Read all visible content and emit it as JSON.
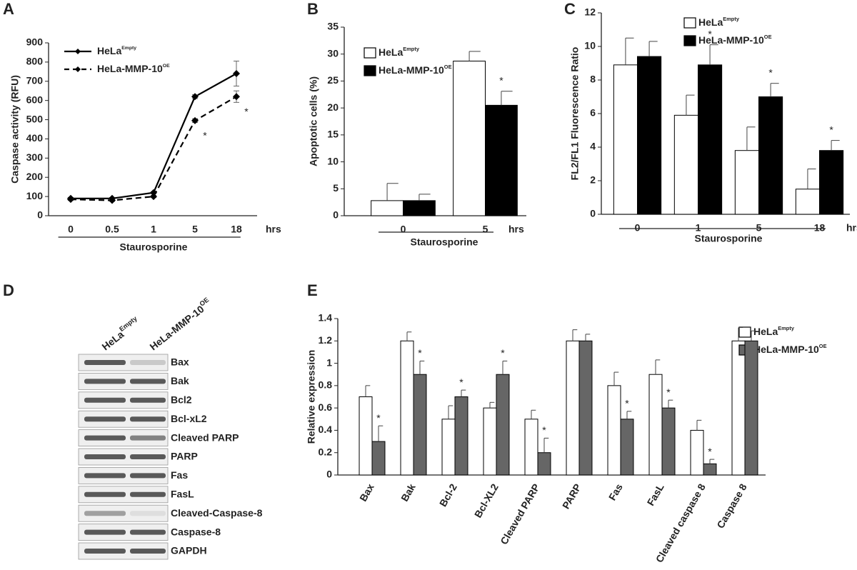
{
  "chart_data": [
    {
      "type": "line",
      "panel_label": "A",
      "ylabel": "Caspase activity (RFU)",
      "xlabel": "Staurosporine",
      "x_unit": "hrs",
      "categories": [
        "0",
        "0.5",
        "1",
        "5",
        "18"
      ],
      "ylim": [
        0,
        900
      ],
      "yticks": [
        0,
        100,
        200,
        300,
        400,
        500,
        600,
        700,
        800,
        900
      ],
      "series": [
        {
          "name": "HeLa",
          "name_superscript": "Empty",
          "color": "#000000",
          "line_style": "solid",
          "values": [
            90,
            90,
            120,
            620,
            740
          ],
          "errors": [
            5,
            5,
            5,
            10,
            65
          ],
          "markers": [
            null,
            null,
            null,
            null,
            null
          ]
        },
        {
          "name": "HeLa-MMP-10",
          "name_superscript": "OE",
          "color": "#000000",
          "line_style": "dashed",
          "values": [
            85,
            80,
            100,
            495,
            620
          ],
          "errors": [
            5,
            5,
            5,
            10,
            30
          ],
          "markers": [
            null,
            null,
            null,
            "*",
            "*"
          ]
        }
      ]
    },
    {
      "type": "bar",
      "panel_label": "B",
      "ylabel": "Apoptotic cells (%)",
      "xlabel": "Staurosporine",
      "x_unit": "hrs",
      "categories": [
        "0",
        "5"
      ],
      "ylim": [
        0,
        35
      ],
      "yticks": [
        0,
        5,
        10,
        15,
        20,
        25,
        30,
        35
      ],
      "series": [
        {
          "name": "HeLa",
          "name_superscript": "Empty",
          "color": "#ffffff",
          "values": [
            2.8,
            28.7
          ],
          "errors": [
            3.2,
            1.8
          ],
          "markers": [
            null,
            null
          ]
        },
        {
          "name": "HeLa-MMP-10",
          "name_superscript": "OE",
          "color": "#000000",
          "values": [
            2.8,
            20.5
          ],
          "errors": [
            1.2,
            2.6
          ],
          "markers": [
            null,
            "*"
          ]
        }
      ]
    },
    {
      "type": "bar",
      "panel_label": "C",
      "ylabel": "FL2/FL1 Fluorescence Ratio",
      "xlabel": "Staurosporine",
      "x_unit": "hrs",
      "categories": [
        "0",
        "1",
        "5",
        "18"
      ],
      "ylim": [
        0,
        12
      ],
      "yticks": [
        0,
        2,
        4,
        6,
        8,
        10,
        12
      ],
      "series": [
        {
          "name": "HeLa",
          "name_superscript": "Empty",
          "color": "#ffffff",
          "values": [
            8.9,
            5.9,
            3.8,
            1.5
          ],
          "errors": [
            1.6,
            1.2,
            1.4,
            1.2
          ],
          "markers": [
            null,
            null,
            null,
            null
          ]
        },
        {
          "name": "HeLa-MMP-10",
          "name_superscript": "OE",
          "color": "#000000",
          "values": [
            9.4,
            8.9,
            7.0,
            3.8
          ],
          "errors": [
            0.9,
            1.2,
            0.8,
            0.6
          ],
          "markers": [
            null,
            "*",
            "*",
            "*"
          ]
        }
      ]
    },
    {
      "type": "bar",
      "panel_label": "E",
      "ylabel": "Relative expression",
      "categories": [
        "Bax",
        "Bak",
        "Bcl-2",
        "Bcl-XL2",
        "Cleaved PARP",
        "PARP",
        "Fas",
        "FasL",
        "Cleaved caspase 8",
        "Caspase 8"
      ],
      "ylim": [
        0,
        1.4
      ],
      "yticks": [
        0,
        0.2,
        0.4,
        0.6,
        0.8,
        1,
        1.2,
        1.4
      ],
      "series": [
        {
          "name": "HeLa",
          "name_superscript": "Empty",
          "color": "#ffffff",
          "values": [
            0.7,
            1.2,
            0.5,
            0.6,
            0.5,
            1.2,
            0.8,
            0.9,
            0.4,
            1.2
          ],
          "errors": [
            0.1,
            0.08,
            0.12,
            0.05,
            0.08,
            0.1,
            0.12,
            0.13,
            0.09,
            0.12
          ],
          "markers": [
            null,
            null,
            null,
            null,
            null,
            null,
            null,
            null,
            null,
            null
          ]
        },
        {
          "name": "HeLa-MMP-10",
          "name_superscript": "OE",
          "color": "#666666",
          "values": [
            0.3,
            0.9,
            0.7,
            0.9,
            0.2,
            1.2,
            0.5,
            0.6,
            0.1,
            1.2
          ],
          "errors": [
            0.14,
            0.12,
            0.06,
            0.12,
            0.13,
            0.06,
            0.07,
            0.07,
            0.04,
            0.09
          ],
          "markers": [
            "*",
            "*",
            "*",
            "*",
            "*",
            null,
            "*",
            "*",
            "*",
            null
          ]
        }
      ]
    }
  ],
  "blot": {
    "panel_label": "D",
    "lanes": [
      {
        "name": "HeLa",
        "name_superscript": "Empty"
      },
      {
        "name": "HeLa-MMP-10",
        "name_superscript": "OE"
      }
    ],
    "rows": [
      "Bax",
      "Bak",
      "Bcl2",
      "Bcl-xL2",
      "Cleaved PARP",
      "PARP",
      "Fas",
      "FasL",
      "Cleaved-Caspase-8",
      "Caspase-8",
      "GAPDH"
    ]
  }
}
